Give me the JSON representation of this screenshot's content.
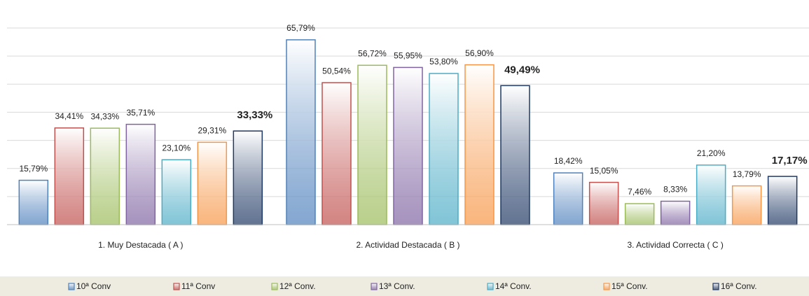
{
  "chart_data": {
    "type": "bar",
    "categories": [
      "1. Muy Destacada ( A )",
      "2. Actividad Destacada ( B )",
      "3. Actividad Correcta ( C )"
    ],
    "ylim": [
      0,
      70
    ],
    "yticks": [
      0,
      10,
      20,
      30,
      40,
      50,
      60,
      70
    ],
    "grid": true,
    "legend": "bottom",
    "series": [
      {
        "name": "10ª Conv",
        "color": "#4f81bd",
        "values": [
          15.79,
          65.79,
          18.42
        ],
        "value_labels": [
          "15,79%",
          "65,79%",
          "18,42%"
        ]
      },
      {
        "name": "11ª Conv",
        "color": "#c0504d",
        "values": [
          34.41,
          50.54,
          15.05
        ],
        "value_labels": [
          "34,41%",
          "50,54%",
          "15,05%"
        ]
      },
      {
        "name": "12ª Conv.",
        "color": "#9bbb59",
        "values": [
          34.33,
          56.72,
          7.46
        ],
        "value_labels": [
          "34,33%",
          "56,72%",
          "7,46%"
        ]
      },
      {
        "name": "13ª Conv.",
        "color": "#8064a2",
        "values": [
          35.71,
          55.95,
          8.33
        ],
        "value_labels": [
          "35,71%",
          "55,95%",
          "8,33%"
        ]
      },
      {
        "name": "14ª Conv.",
        "color": "#4bacc6",
        "values": [
          23.1,
          53.8,
          21.2
        ],
        "value_labels": [
          "23,10%",
          "53,80%",
          "21,20%"
        ]
      },
      {
        "name": "15ª Conv.",
        "color": "#f79646",
        "values": [
          29.31,
          56.9,
          13.79
        ],
        "value_labels": [
          "29,31%",
          "56,90%",
          "13,79%"
        ]
      },
      {
        "name": "16ª Conv.",
        "color": "#1f3864",
        "values": [
          33.33,
          49.49,
          17.17
        ],
        "value_labels": [
          "33,33%",
          "49,49%",
          "17,17%"
        ],
        "bold": true
      }
    ]
  }
}
